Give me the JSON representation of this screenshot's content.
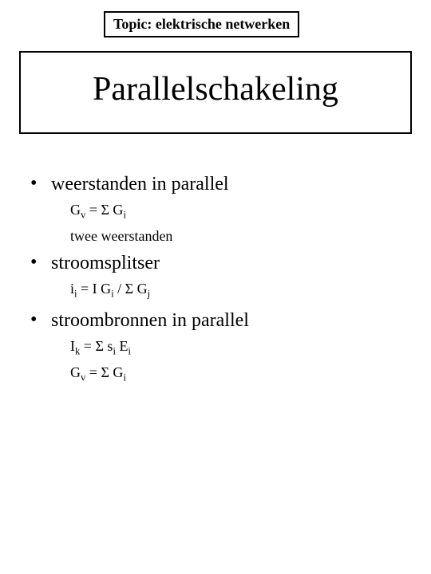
{
  "topic_label": "Topic: elektrische netwerken",
  "title": "Parallelschakeling",
  "bullets": [
    {
      "text": "weerstanden in parallel",
      "sub": [
        {
          "type": "formula",
          "html": "G<sub>v</sub> = Σ G<sub>i</sub>"
        },
        {
          "type": "text",
          "text": "twee weerstanden"
        }
      ]
    },
    {
      "text": "stroomsplitser",
      "sub": [
        {
          "type": "formula",
          "html": "i<sub>i</sub> = I G<sub>i</sub> / Σ G<sub>j</sub>"
        }
      ]
    },
    {
      "text": "stroombronnen in parallel",
      "sub": [
        {
          "type": "formula",
          "html": "I<sub>k</sub> = Σ s<sub>i</sub> E<sub>i</sub>"
        },
        {
          "type": "formula",
          "html": "G<sub>v</sub> = Σ G<sub>i</sub>"
        }
      ]
    }
  ],
  "styles": {
    "background_color": "#ffffff",
    "text_color": "#000000",
    "font_family": "Times New Roman",
    "title_fontsize": 42,
    "topic_fontsize": 18,
    "bullet_fontsize": 24,
    "formula_fontsize": 18
  }
}
